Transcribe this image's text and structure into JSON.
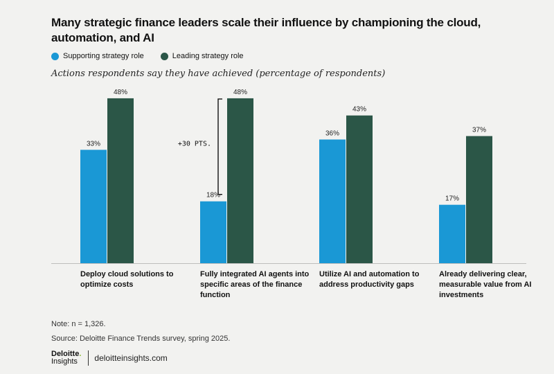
{
  "title": "Many strategic finance leaders scale their influence by championing the cloud, automation, and AI",
  "subtitle": "Actions respondents say they have achieved (percentage of respondents)",
  "colors": {
    "supporting": "#1a98d5",
    "leading": "#2b5647",
    "background": "#f2f2f0"
  },
  "legend": [
    {
      "label": "Supporting strategy role",
      "color": "#1a98d5"
    },
    {
      "label": "Leading strategy role",
      "color": "#2b5647"
    }
  ],
  "annotation": {
    "text": "+30 PTS."
  },
  "notes": {
    "n": "Note: n = 1,326.",
    "source": "Source: Deloitte Finance Trends survey, spring 2025."
  },
  "footer": {
    "logo_top": "Deloitte",
    "logo_dot": ".",
    "logo_bottom": "Insights",
    "url": "deloitteinsights.com"
  },
  "chart_data": {
    "type": "bar",
    "categories": [
      "Deploy cloud solutions to optimize costs",
      "Fully integrated AI agents into specific areas of the finance function",
      "Utilize AI and automation to address productivity gaps",
      "Already delivering clear, measurable value from AI investments"
    ],
    "series": [
      {
        "name": "Supporting strategy role",
        "values": [
          33,
          18,
          36,
          17
        ],
        "labels": [
          "33%",
          "18%",
          "36%",
          "17%"
        ]
      },
      {
        "name": "Leading strategy role",
        "values": [
          48,
          48,
          43,
          37
        ],
        "labels": [
          "48%",
          "48%",
          "43%",
          "37%"
        ]
      }
    ],
    "ylim": [
      0,
      50
    ],
    "unit": "%",
    "grid": false,
    "legend_position": "top-left"
  }
}
